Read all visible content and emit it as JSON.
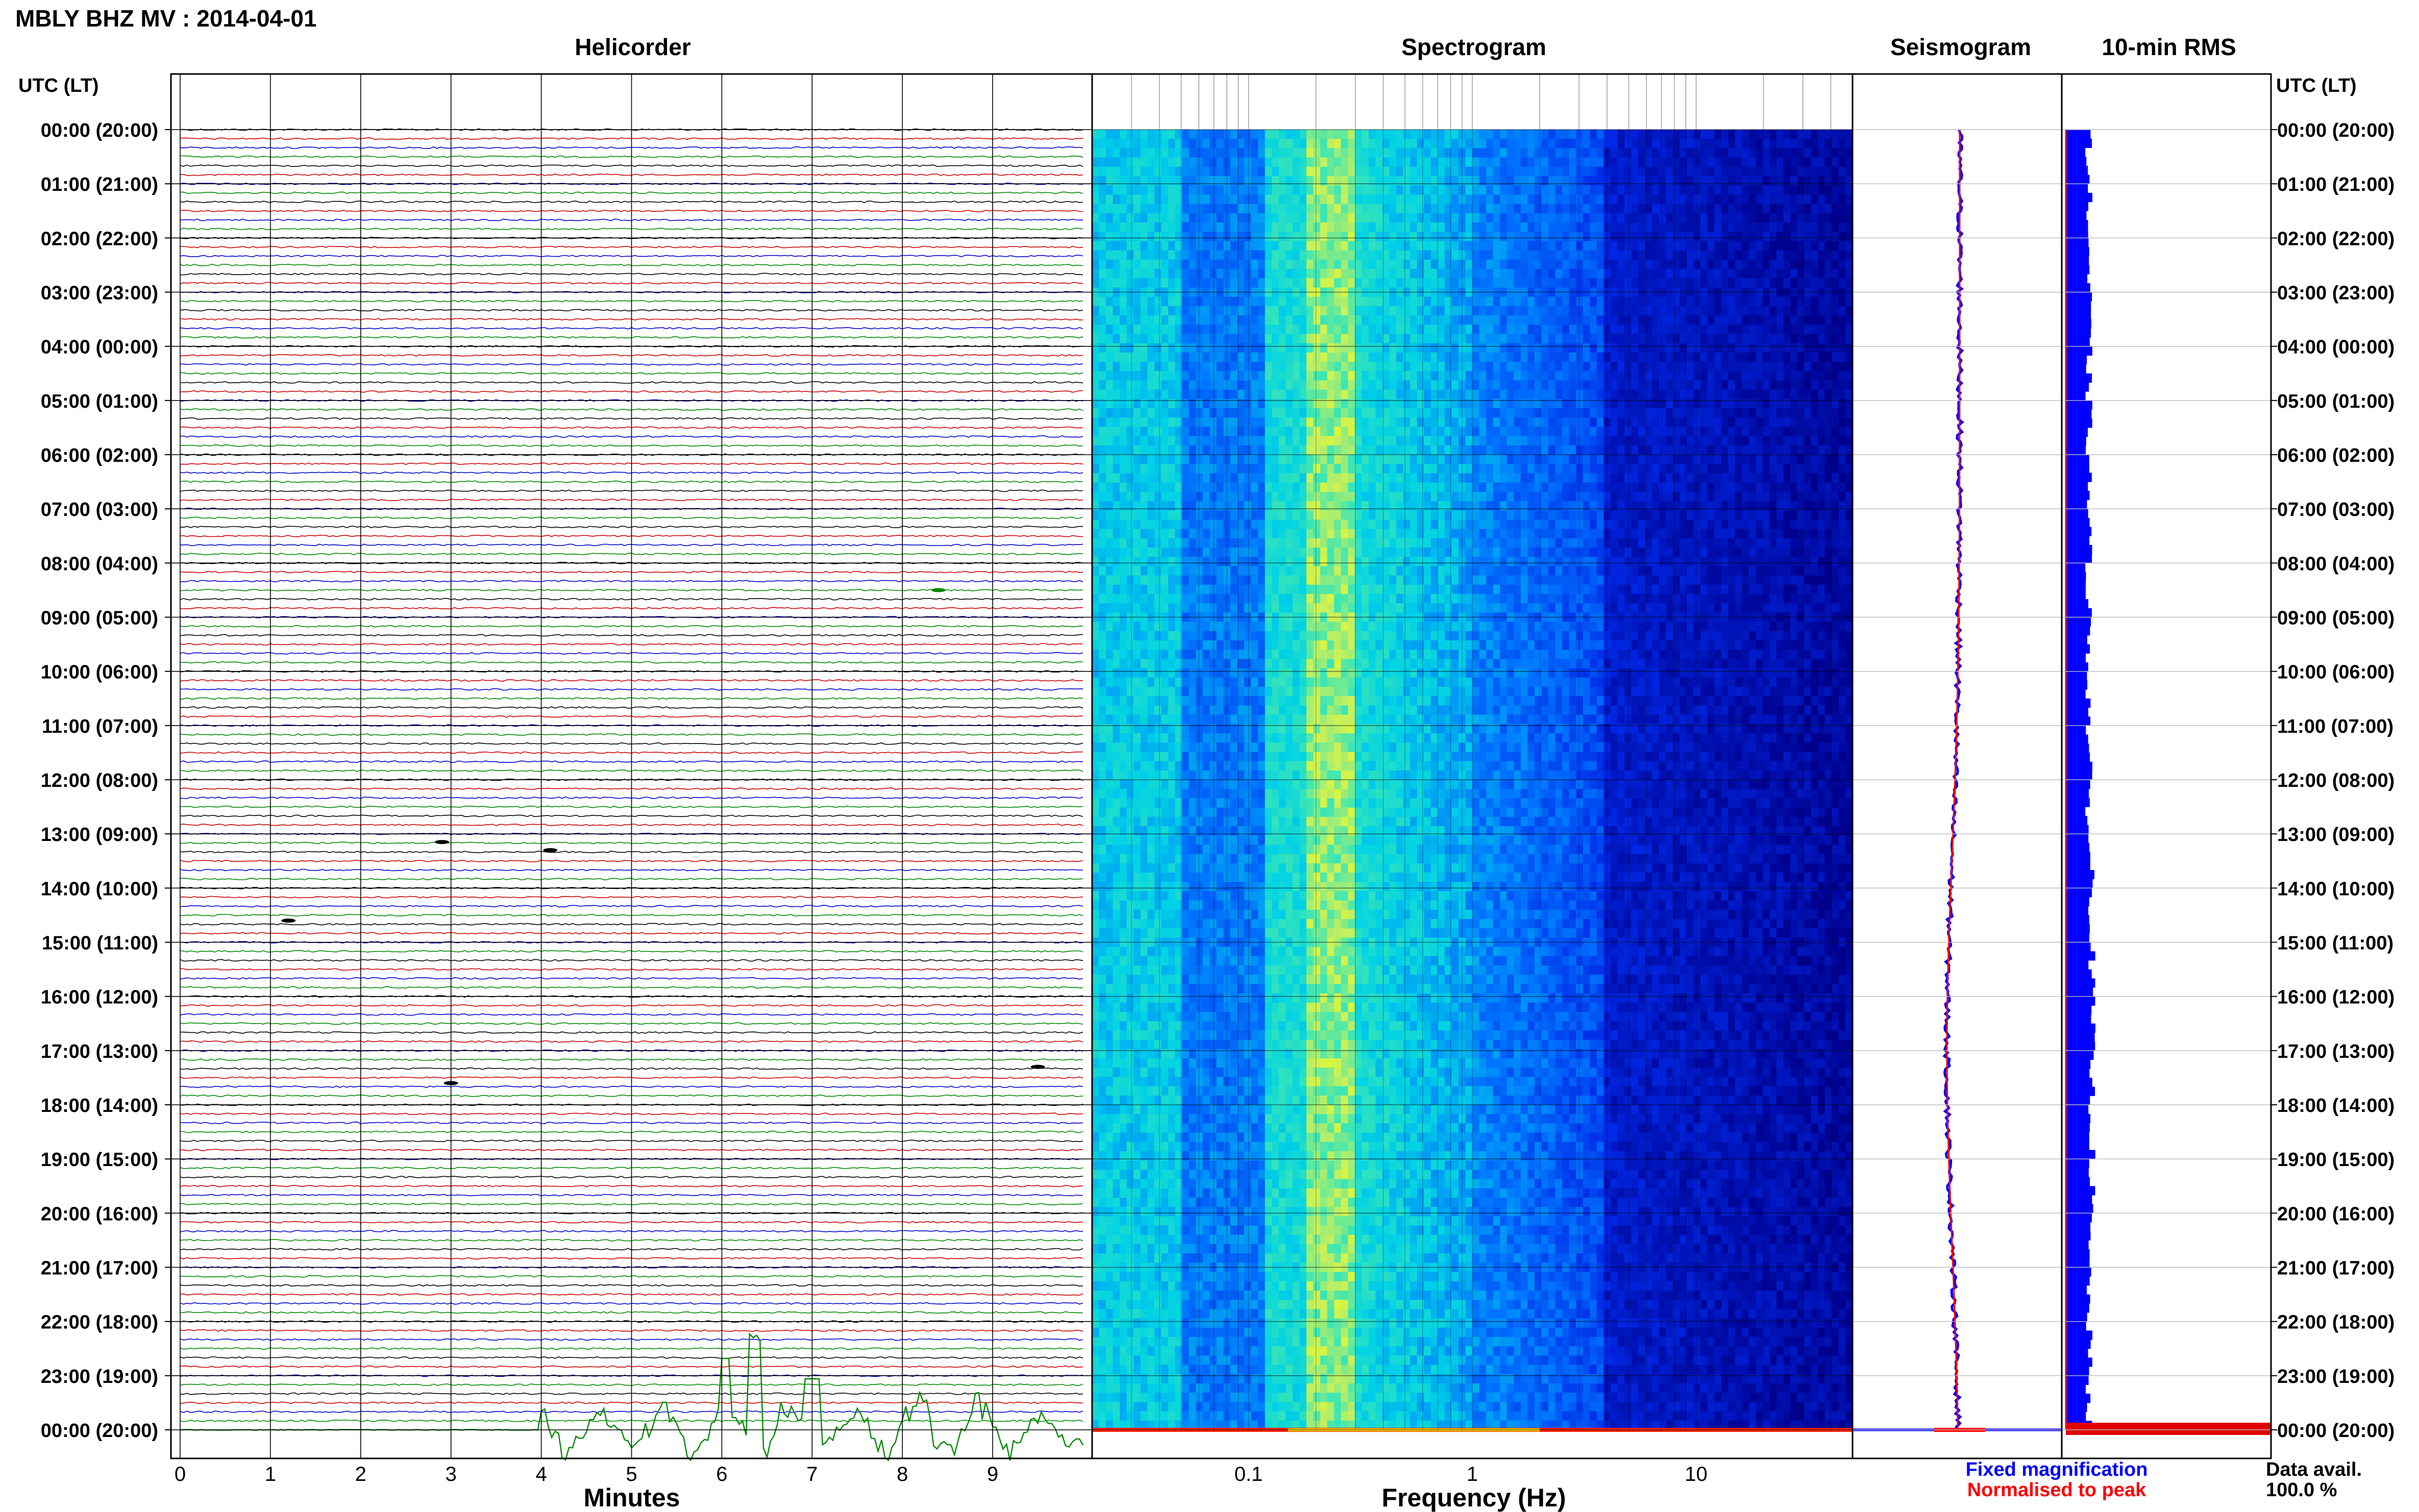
{
  "page_title": "MBLY BHZ MV : 2014-04-01",
  "panels": {
    "helicorder": "Helicorder",
    "spectrogram": "Spectrogram",
    "seismogram": "Seismogram",
    "rms": "10-min RMS"
  },
  "axis_header_left": "UTC (LT)",
  "axis_header_right": "UTC (LT)",
  "time_labels": [
    "00:00 (20:00)",
    "01:00 (21:00)",
    "02:00 (22:00)",
    "03:00 (23:00)",
    "04:00 (00:00)",
    "05:00 (01:00)",
    "06:00 (02:00)",
    "07:00 (03:00)",
    "08:00 (04:00)",
    "09:00 (05:00)",
    "10:00 (06:00)",
    "11:00 (07:00)",
    "12:00 (08:00)",
    "13:00 (09:00)",
    "14:00 (10:00)",
    "15:00 (11:00)",
    "16:00 (12:00)",
    "17:00 (13:00)",
    "18:00 (14:00)",
    "19:00 (15:00)",
    "20:00 (16:00)",
    "21:00 (17:00)",
    "22:00 (18:00)",
    "23:00 (19:00)",
    "00:00 (20:00)"
  ],
  "legend": {
    "fixed": "Fixed magnification",
    "normalised": "Normalised to peak",
    "data_avail_label": "Data avail.",
    "data_avail_value": "100.0 %"
  },
  "colors": {
    "trace_cycle": [
      "#000000",
      "#cc0000",
      "#0000cc",
      "#008800"
    ],
    "fixed": "#0000ff",
    "normalised": "#ff0000",
    "spectro_low": "#00008b",
    "spectro_high": "#ffff00"
  },
  "chart_data": [
    {
      "type": "line",
      "name": "helicorder",
      "xlabel": "Minutes",
      "x_ticks": [
        0,
        1,
        2,
        3,
        4,
        5,
        6,
        7,
        8,
        9
      ],
      "xlim": [
        0,
        10
      ],
      "rows_per_hour": 6,
      "hours": 24,
      "notes": "Stacked 10-minute traces; large green oscillation in the final row from minute 4 to 10."
    },
    {
      "type": "heatmap",
      "name": "spectrogram",
      "xlabel": "Frequency (Hz)",
      "x_scale": "log",
      "x_ticks": [
        0.1,
        1,
        10
      ],
      "xlim": [
        0.02,
        50
      ],
      "colormap": "blue-cyan-yellow",
      "notes": "Bright band near 0.2-0.3 Hz; low power above ~5 Hz."
    },
    {
      "type": "line",
      "name": "seismogram",
      "series": [
        {
          "name": "Fixed magnification",
          "color": "#0000ff"
        },
        {
          "name": "Normalised to peak",
          "color": "#ff0000"
        }
      ]
    },
    {
      "type": "bar",
      "name": "10-min RMS",
      "color": "#0000ff"
    }
  ]
}
